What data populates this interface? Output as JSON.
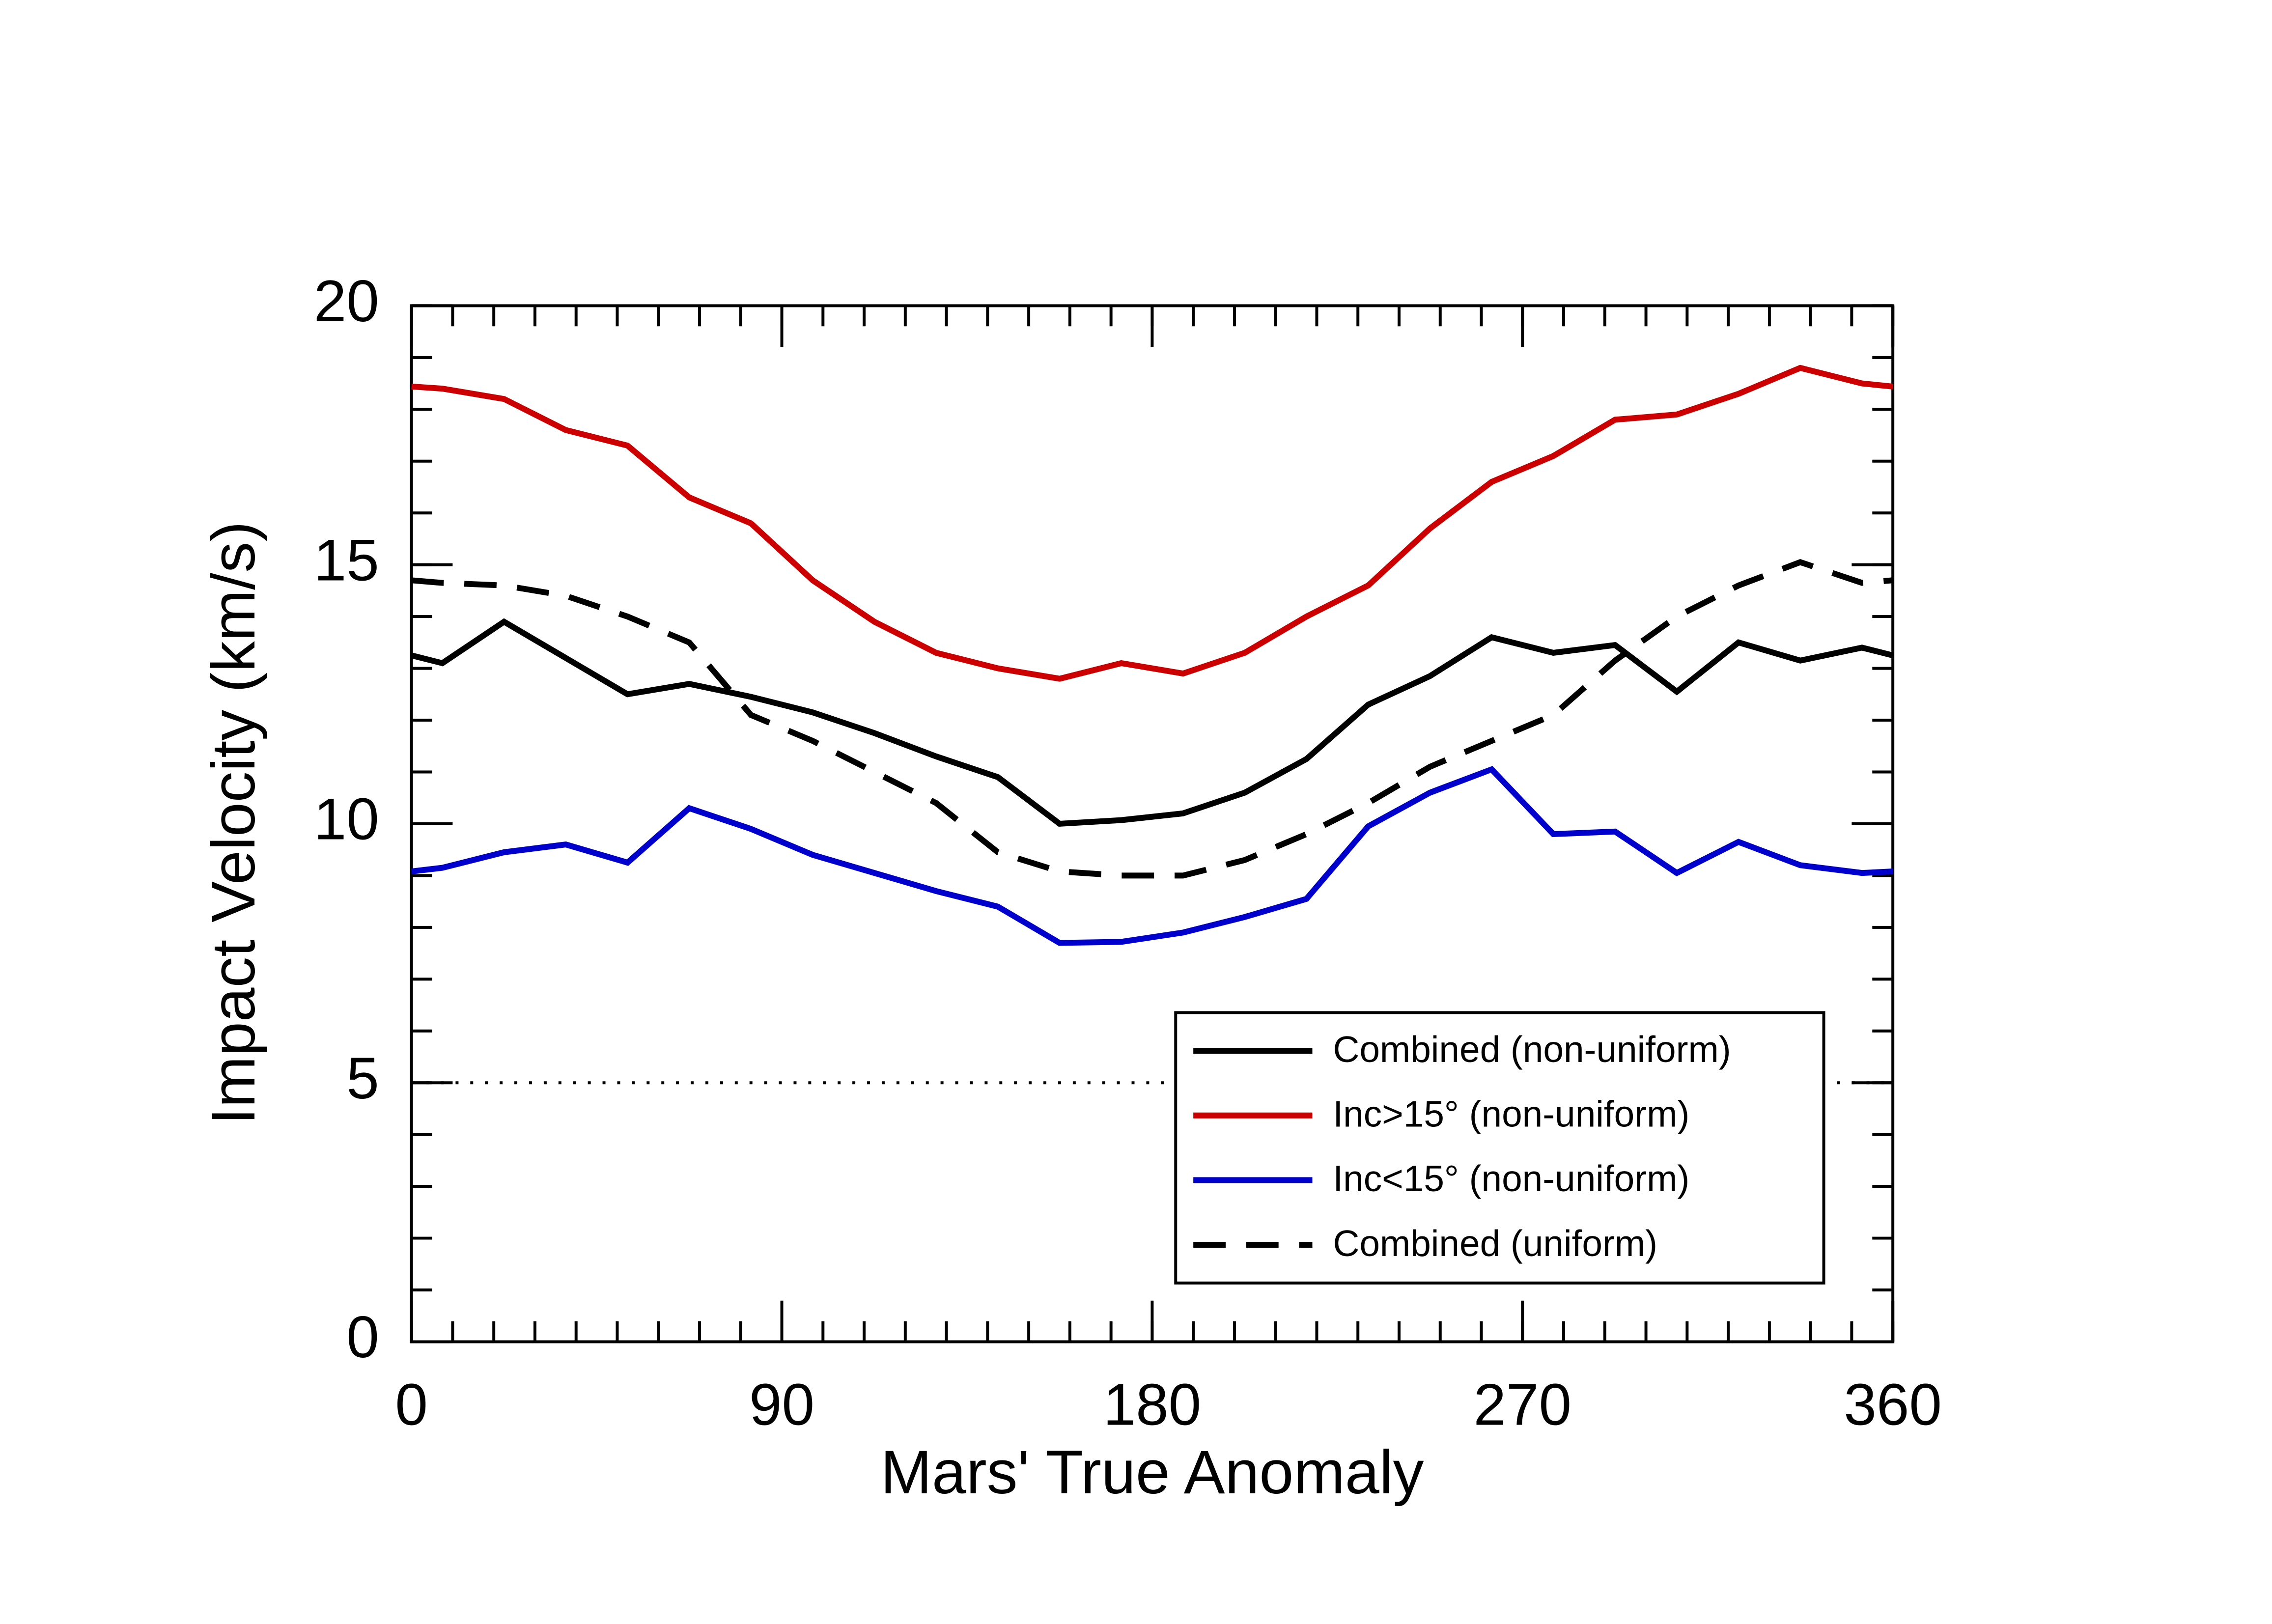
{
  "chart_data": {
    "type": "line",
    "xlabel": "Mars' True Anomaly",
    "ylabel": "Impact Velocity (km/s)",
    "x": [
      0,
      7.5,
      22.5,
      37.5,
      52.5,
      67.5,
      82.5,
      97.5,
      112.5,
      127.5,
      142.5,
      157.5,
      172.5,
      187.5,
      202.5,
      217.5,
      232.5,
      247.5,
      262.5,
      277.5,
      292.5,
      307.5,
      322.5,
      337.5,
      352.5,
      360
    ],
    "series": [
      {
        "name": "Combined (non-uniform)",
        "color": "#000000",
        "dash": "solid",
        "values": [
          13.25,
          13.1,
          13.9,
          13.2,
          12.5,
          12.7,
          12.45,
          12.15,
          11.75,
          11.3,
          10.9,
          10.0,
          10.07,
          10.2,
          10.6,
          11.25,
          12.3,
          12.85,
          13.6,
          13.3,
          13.45,
          12.55,
          13.5,
          13.15,
          13.4,
          13.25
        ]
      },
      {
        "name": "Inc>15° (non-uniform)",
        "color": "#cc0000",
        "dash": "solid",
        "values": [
          18.44,
          18.4,
          18.2,
          17.6,
          17.3,
          16.3,
          15.8,
          14.7,
          13.9,
          13.3,
          13.0,
          12.8,
          13.1,
          12.9,
          13.3,
          14.0,
          14.6,
          15.7,
          16.6,
          17.1,
          17.8,
          17.9,
          18.3,
          18.8,
          18.5,
          18.44
        ]
      },
      {
        "name": "Inc<15° (non-uniform)",
        "color": "#0000cc",
        "dash": "solid",
        "values": [
          9.08,
          9.15,
          9.45,
          9.6,
          9.25,
          10.3,
          9.9,
          9.4,
          9.05,
          8.7,
          8.4,
          7.7,
          7.72,
          7.9,
          8.2,
          8.55,
          9.95,
          10.6,
          11.05,
          9.8,
          9.85,
          9.05,
          9.65,
          9.2,
          9.05,
          9.08
        ]
      },
      {
        "name": "Combined (uniform)",
        "color": "#000000",
        "dash": "dashed",
        "values": [
          14.7,
          14.65,
          14.6,
          14.4,
          14.0,
          13.5,
          12.1,
          11.6,
          11.0,
          10.4,
          9.45,
          9.08,
          9.0,
          9.0,
          9.3,
          9.8,
          10.4,
          11.1,
          11.6,
          12.1,
          13.15,
          14.0,
          14.6,
          15.05,
          14.65,
          14.7
        ]
      }
    ],
    "hline": 5,
    "xlim": [
      0,
      360
    ],
    "ylim": [
      0,
      20
    ],
    "xticks": [
      0,
      90,
      180,
      270,
      360
    ],
    "yticks": [
      0,
      5,
      10,
      15,
      20
    ],
    "minor_step": {
      "x": 10,
      "y": 1
    },
    "legend": "lower right",
    "grid": false
  }
}
